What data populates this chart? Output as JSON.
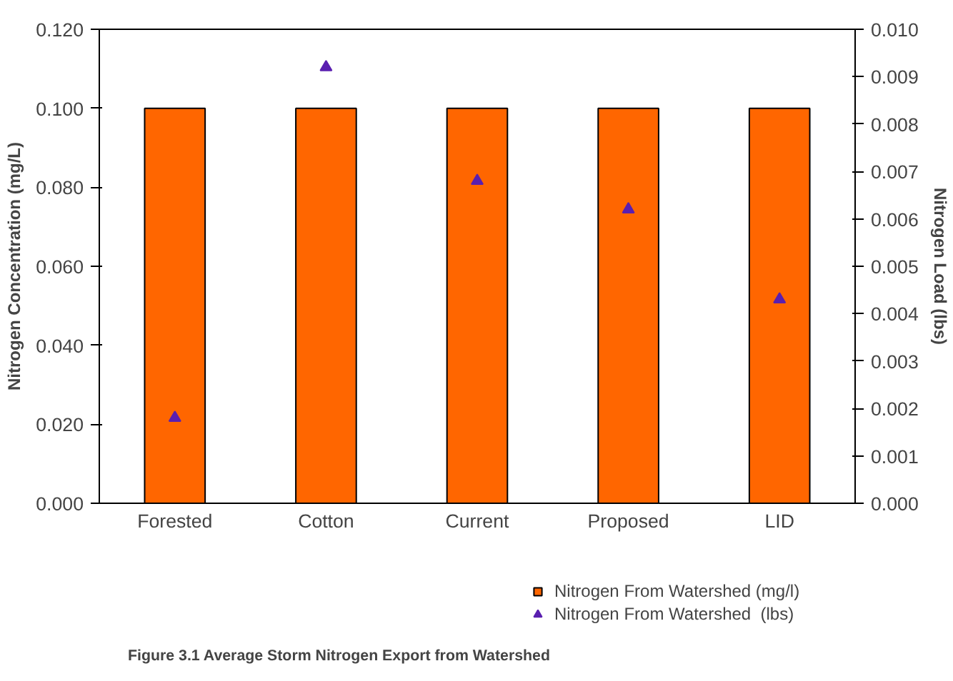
{
  "chart_data": {
    "type": "bar",
    "categories": [
      "Forested",
      "Cotton",
      "Current",
      "Proposed",
      "LID"
    ],
    "ylabel": "Nitrogen Concentration (mg/L)",
    "y2label": "Nitrogen Load (lbs)",
    "series": [
      {
        "name": "Nitrogen From Watershed (mg/l)",
        "color": "#ff6600",
        "values": [
          0.1,
          0.1,
          0.1,
          0.1,
          0.1
        ]
      },
      {
        "name": "Nitrogen From Watershed  (lbs)",
        "type": "scatter",
        "axis": "y2",
        "marker": "triangle",
        "color": "#5a1fb0",
        "values": [
          0.0018,
          0.0092,
          0.0068,
          0.0062,
          0.0043
        ]
      }
    ],
    "ylim": [
      0,
      0.12
    ],
    "yticks": [
      {
        "value": 0,
        "label": "0.000"
      },
      {
        "value": 0.02,
        "label": "0.020"
      },
      {
        "value": 0.04,
        "label": "0.040"
      },
      {
        "value": 0.06,
        "label": "0.060"
      },
      {
        "value": 0.08,
        "label": "0.080"
      },
      {
        "value": 0.1,
        "label": "0.100"
      },
      {
        "value": 0.12,
        "label": "0.120"
      }
    ],
    "y2lim": [
      0,
      0.01
    ],
    "y2ticks": [
      {
        "value": 0,
        "label": "0.000"
      },
      {
        "value": 0.001,
        "label": "0.001"
      },
      {
        "value": 0.002,
        "label": "0.002"
      },
      {
        "value": 0.003,
        "label": "0.003"
      },
      {
        "value": 0.004,
        "label": "0.004"
      },
      {
        "value": 0.005,
        "label": "0.005"
      },
      {
        "value": 0.006,
        "label": "0.006"
      },
      {
        "value": 0.007,
        "label": "0.007"
      },
      {
        "value": 0.008,
        "label": "0.008"
      },
      {
        "value": 0.009,
        "label": "0.009"
      },
      {
        "value": 0.01,
        "label": "0.010"
      }
    ],
    "grid": false,
    "legend": "bottom right",
    "annotations": [
      "Figure 3.1  Average Storm Nitrogen Export from Watershed"
    ]
  }
}
